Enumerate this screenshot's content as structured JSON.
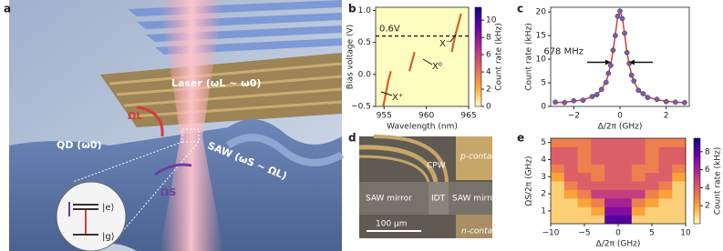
{
  "illustration": {
    "label": "a",
    "laser": "Laser (ωL ~ ω0)",
    "omega_l": "ΩL",
    "qd": "QD (ω0)",
    "saw": "SAW (ωS ~ ΩL)",
    "omega_s": "ΩS",
    "excited": "|e⟩",
    "ground": "|g⟩"
  },
  "micrograph": {
    "label": "d",
    "cpw": "CPW",
    "p_contact": "p-contact",
    "mirror_left": "SAW mirror",
    "idt": "IDT",
    "mirror_right": "SAW mirror",
    "scale": "100 μm",
    "n_contact": "n-contact"
  },
  "chart_data": [
    {
      "type": "traces",
      "label": "b",
      "xlabel": "Wavelength (nm)",
      "ylabel": "Bias voltage (V)",
      "xlim": [
        954,
        965
      ],
      "ylim": [
        -0.5,
        1.05
      ],
      "xticks": [
        955,
        960,
        965
      ],
      "yticks": [
        {
          "value": -0.5,
          "label": "−0.5"
        },
        {
          "value": 0,
          "label": "0.0"
        },
        0.5,
        {
          "value": 1,
          "label": "1.0"
        }
      ],
      "hline": 0.6,
      "annotations": [
        "0.6V",
        "X⁺",
        "X⁰",
        "X⁻"
      ],
      "trace_color": "#d8602a",
      "traces": [
        {
          "x": [
            954.9,
            955.2,
            955.5,
            955.8
          ],
          "y": [
            -0.5,
            -0.3,
            -0.1,
            0.05
          ]
        },
        {
          "x": [
            958.0,
            958.3,
            958.6
          ],
          "y": [
            0.05,
            0.2,
            0.35
          ]
        },
        {
          "x": [
            963.0,
            963.4,
            963.8,
            964.1
          ],
          "y": [
            0.35,
            0.6,
            0.8,
            0.95
          ]
        }
      ],
      "colorbar": {
        "label": "Count rate (kHz)",
        "lim": [
          0,
          11.5
        ],
        "ticks": [
          0,
          2,
          4,
          6,
          8,
          10
        ]
      },
      "colormap": [
        "#fcfdbf",
        "#fca636",
        "#e16462",
        "#b12a90",
        "#6a00a8",
        "#0d0887"
      ]
    },
    {
      "type": "scatter_fit",
      "label": "c",
      "xlabel": "Δ/2π (GHz)",
      "ylabel": "Count rate (kHz)",
      "xlim": [
        -3,
        3
      ],
      "ylim": [
        0,
        21
      ],
      "xticks": [
        {
          "value": -2,
          "label": "−2"
        },
        0,
        2
      ],
      "yticks": [
        0,
        5,
        10,
        15,
        20
      ],
      "annotation": "678 MHz",
      "point_color": "#7b5ea7",
      "fit_color": "#d43c3c",
      "points": {
        "x": [
          -2.8,
          -2.4,
          -2.0,
          -1.6,
          -1.2,
          -1.0,
          -0.8,
          -0.6,
          -0.5,
          -0.4,
          -0.3,
          -0.2,
          -0.1,
          0,
          0.1,
          0.2,
          0.3,
          0.4,
          0.5,
          0.6,
          0.8,
          1.0,
          1.2,
          1.6,
          2.0,
          2.4,
          2.8
        ],
        "y": [
          0.9,
          0.8,
          1.2,
          1.3,
          2.1,
          2.5,
          3.6,
          5.1,
          7.0,
          8.7,
          11.9,
          15.0,
          19.1,
          20.2,
          18.6,
          15.5,
          11.4,
          9.1,
          6.6,
          5.4,
          3.4,
          2.7,
          1.9,
          1.5,
          1.0,
          0.9,
          0.8
        ]
      },
      "fit": {
        "x": [
          -2.8,
          -2.4,
          -2.0,
          -1.6,
          -1.2,
          -1.0,
          -0.8,
          -0.6,
          -0.5,
          -0.4,
          -0.3,
          -0.2,
          -0.1,
          0,
          0.1,
          0.2,
          0.3,
          0.4,
          0.5,
          0.6,
          0.8,
          1.0,
          1.2,
          1.6,
          2.0,
          2.4,
          2.8
        ],
        "y": [
          0.8,
          0.9,
          1.1,
          1.4,
          2.0,
          2.6,
          3.5,
          5.3,
          6.8,
          8.9,
          11.7,
          15.3,
          18.9,
          20.0,
          18.9,
          15.3,
          11.7,
          8.9,
          6.8,
          5.3,
          3.5,
          2.6,
          2.0,
          1.4,
          1.1,
          0.9,
          0.8
        ]
      }
    },
    {
      "type": "heatmap",
      "label": "e",
      "xlabel": "Δ/2π (GHz)",
      "ylabel": "ΩS/2π (GHz)",
      "xlim": [
        -10,
        10
      ],
      "ylim": [
        0.25,
        5.25
      ],
      "xticks": [
        {
          "value": -10,
          "label": "−10"
        },
        {
          "value": -5,
          "label": "−5"
        },
        0,
        5,
        10
      ],
      "yticks": [
        1,
        2,
        3,
        4,
        5
      ],
      "x": [
        -9,
        -7,
        -5,
        -3,
        -1,
        1,
        3,
        5,
        7,
        9
      ],
      "y": [
        0.5,
        1.0,
        1.5,
        2.0,
        2.5,
        3.0,
        3.5,
        4.0,
        4.5,
        5.0
      ],
      "z": [
        [
          1,
          1,
          1,
          1,
          8,
          8,
          1,
          1,
          1,
          1
        ],
        [
          1,
          1,
          1,
          2,
          7,
          7,
          2,
          1,
          1,
          1
        ],
        [
          1,
          1,
          2,
          3,
          6,
          6,
          3,
          2,
          1,
          1
        ],
        [
          1,
          2,
          3,
          5,
          5,
          5,
          5,
          3,
          2,
          1
        ],
        [
          1,
          3,
          4,
          4,
          4,
          4,
          4,
          4,
          3,
          1
        ],
        [
          2,
          4,
          4,
          3,
          4,
          4,
          3,
          4,
          4,
          2
        ],
        [
          3,
          4,
          3,
          3,
          4,
          4,
          3,
          3,
          4,
          3
        ],
        [
          4,
          4,
          3,
          4,
          4,
          4,
          4,
          3,
          4,
          4
        ],
        [
          4,
          4,
          3,
          4,
          4,
          4,
          4,
          3,
          4,
          4
        ],
        [
          3,
          3,
          3,
          4,
          4,
          4,
          4,
          3,
          3,
          3
        ]
      ],
      "colorbar": {
        "label": "Count rate (kHz)",
        "lim": [
          0,
          9.5
        ],
        "ticks": [
          2,
          4,
          6,
          8
        ]
      },
      "colormap": [
        "#fcfdbf",
        "#fca636",
        "#e16462",
        "#b12a90",
        "#6a00a8",
        "#0d0887"
      ]
    }
  ]
}
